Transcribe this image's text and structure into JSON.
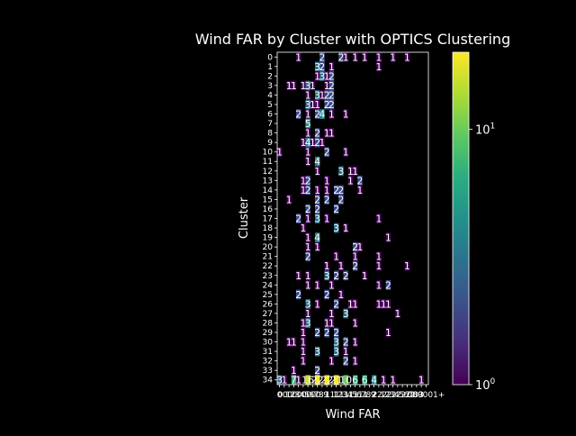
{
  "chart_data": {
    "type": "heatmap",
    "title": "Wind FAR by Cluster with OPTICS Clustering",
    "xlabel": "Wind FAR",
    "ylabel": "Cluster",
    "rows": [
      "0",
      "1",
      "2",
      "3",
      "4",
      "5",
      "6",
      "7",
      "8",
      "9",
      "10",
      "11",
      "12",
      "13",
      "14",
      "15",
      "16",
      "17",
      "18",
      "19",
      "20",
      "21",
      "22",
      "23",
      "24",
      "25",
      "26",
      "27",
      "28",
      "29",
      "30",
      "31",
      "32",
      "33",
      "34"
    ],
    "num_cols": 32,
    "x_tick_labels": [
      "0",
      "0.1",
      "0.2",
      "0.3",
      "0.4",
      "0.5",
      "0.6",
      "0.7",
      "0.8",
      "0.9",
      "1",
      "1.1",
      "1.2",
      "1.3",
      "1.4",
      "1.5",
      "1.6",
      "1.7",
      "1.8",
      "1.9",
      "2",
      "2.1",
      "2.2",
      "2.3",
      "2.4",
      "2.5",
      "2.6",
      "2.7",
      "2.8",
      "2.9",
      "3",
      "000001+"
    ],
    "colorbar": {
      "scale": "log",
      "min": 1,
      "max": 20,
      "ticks": [
        1,
        10
      ],
      "tick_labels": [
        "10^0",
        "10^1"
      ],
      "colormap": "viridis"
    },
    "cells": [
      [
        0,
        4,
        1
      ],
      [
        0,
        9,
        2
      ],
      [
        0,
        13,
        2
      ],
      [
        0,
        14,
        1
      ],
      [
        0,
        16,
        1
      ],
      [
        0,
        18,
        1
      ],
      [
        0,
        21,
        1
      ],
      [
        0,
        24,
        1
      ],
      [
        0,
        27,
        1
      ],
      [
        1,
        8,
        3
      ],
      [
        1,
        9,
        2
      ],
      [
        1,
        11,
        1
      ],
      [
        1,
        21,
        1
      ],
      [
        2,
        8,
        1
      ],
      [
        2,
        9,
        3
      ],
      [
        2,
        10,
        1
      ],
      [
        2,
        11,
        2
      ],
      [
        3,
        2,
        1
      ],
      [
        3,
        3,
        1
      ],
      [
        3,
        5,
        1
      ],
      [
        3,
        6,
        3
      ],
      [
        3,
        7,
        1
      ],
      [
        3,
        10,
        1
      ],
      [
        3,
        11,
        2
      ],
      [
        4,
        6,
        1
      ],
      [
        4,
        8,
        3
      ],
      [
        4,
        9,
        1
      ],
      [
        4,
        10,
        2
      ],
      [
        4,
        11,
        2
      ],
      [
        5,
        6,
        3
      ],
      [
        5,
        7,
        1
      ],
      [
        5,
        8,
        1
      ],
      [
        5,
        10,
        2
      ],
      [
        5,
        11,
        2
      ],
      [
        6,
        4,
        2
      ],
      [
        6,
        6,
        1
      ],
      [
        6,
        8,
        2
      ],
      [
        6,
        9,
        4
      ],
      [
        6,
        11,
        1
      ],
      [
        6,
        14,
        1
      ],
      [
        7,
        6,
        5
      ],
      [
        8,
        6,
        1
      ],
      [
        8,
        8,
        2
      ],
      [
        8,
        10,
        1
      ],
      [
        8,
        11,
        1
      ],
      [
        9,
        5,
        1
      ],
      [
        9,
        6,
        4
      ],
      [
        9,
        7,
        1
      ],
      [
        9,
        8,
        2
      ],
      [
        9,
        9,
        1
      ],
      [
        10,
        0,
        1
      ],
      [
        10,
        6,
        1
      ],
      [
        10,
        10,
        2
      ],
      [
        10,
        14,
        1
      ],
      [
        11,
        6,
        1
      ],
      [
        11,
        8,
        4
      ],
      [
        12,
        8,
        1
      ],
      [
        12,
        13,
        3
      ],
      [
        12,
        15,
        1
      ],
      [
        12,
        16,
        1
      ],
      [
        13,
        5,
        1
      ],
      [
        13,
        6,
        2
      ],
      [
        13,
        10,
        1
      ],
      [
        13,
        15,
        1
      ],
      [
        13,
        17,
        2
      ],
      [
        14,
        5,
        1
      ],
      [
        14,
        6,
        2
      ],
      [
        14,
        8,
        1
      ],
      [
        14,
        10,
        1
      ],
      [
        14,
        12,
        2
      ],
      [
        14,
        13,
        2
      ],
      [
        14,
        17,
        1
      ],
      [
        15,
        2,
        1
      ],
      [
        15,
        8,
        2
      ],
      [
        15,
        10,
        2
      ],
      [
        15,
        13,
        2
      ],
      [
        16,
        6,
        2
      ],
      [
        16,
        8,
        2
      ],
      [
        16,
        12,
        2
      ],
      [
        17,
        4,
        2
      ],
      [
        17,
        6,
        1
      ],
      [
        17,
        8,
        3
      ],
      [
        17,
        10,
        1
      ],
      [
        17,
        21,
        1
      ],
      [
        18,
        5,
        1
      ],
      [
        18,
        12,
        3
      ],
      [
        18,
        14,
        1
      ],
      [
        19,
        6,
        1
      ],
      [
        19,
        8,
        4
      ],
      [
        19,
        23,
        1
      ],
      [
        20,
        6,
        1
      ],
      [
        20,
        8,
        1
      ],
      [
        20,
        16,
        2
      ],
      [
        20,
        17,
        1
      ],
      [
        21,
        6,
        2
      ],
      [
        21,
        12,
        1
      ],
      [
        21,
        16,
        1
      ],
      [
        21,
        21,
        1
      ],
      [
        22,
        10,
        1
      ],
      [
        22,
        13,
        1
      ],
      [
        22,
        16,
        2
      ],
      [
        22,
        21,
        1
      ],
      [
        22,
        27,
        1
      ],
      [
        23,
        4,
        1
      ],
      [
        23,
        6,
        1
      ],
      [
        23,
        10,
        3
      ],
      [
        23,
        12,
        2
      ],
      [
        23,
        14,
        2
      ],
      [
        23,
        18,
        1
      ],
      [
        24,
        6,
        1
      ],
      [
        24,
        8,
        1
      ],
      [
        24,
        11,
        1
      ],
      [
        24,
        21,
        1
      ],
      [
        24,
        23,
        2
      ],
      [
        25,
        4,
        2
      ],
      [
        25,
        10,
        2
      ],
      [
        25,
        13,
        1
      ],
      [
        26,
        6,
        3
      ],
      [
        26,
        8,
        1
      ],
      [
        26,
        12,
        2
      ],
      [
        26,
        15,
        1
      ],
      [
        26,
        16,
        1
      ],
      [
        26,
        21,
        1
      ],
      [
        26,
        22,
        1
      ],
      [
        26,
        23,
        1
      ],
      [
        27,
        6,
        1
      ],
      [
        27,
        11,
        1
      ],
      [
        27,
        14,
        3
      ],
      [
        27,
        25,
        1
      ],
      [
        28,
        5,
        1
      ],
      [
        28,
        6,
        3
      ],
      [
        28,
        10,
        1
      ],
      [
        28,
        11,
        1
      ],
      [
        28,
        16,
        1
      ],
      [
        29,
        5,
        1
      ],
      [
        29,
        8,
        2
      ],
      [
        29,
        10,
        2
      ],
      [
        29,
        12,
        2
      ],
      [
        29,
        23,
        1
      ],
      [
        30,
        2,
        1
      ],
      [
        30,
        3,
        1
      ],
      [
        30,
        5,
        1
      ],
      [
        30,
        12,
        3
      ],
      [
        30,
        14,
        2
      ],
      [
        30,
        16,
        1
      ],
      [
        31,
        5,
        1
      ],
      [
        31,
        8,
        3
      ],
      [
        31,
        12,
        3
      ],
      [
        31,
        14,
        1
      ],
      [
        32,
        5,
        1
      ],
      [
        32,
        11,
        1
      ],
      [
        32,
        14,
        2
      ],
      [
        32,
        16,
        1
      ],
      [
        33,
        3,
        1
      ],
      [
        33,
        8,
        2
      ],
      [
        34,
        0,
        3
      ],
      [
        34,
        1,
        1
      ],
      [
        34,
        3,
        7
      ],
      [
        34,
        4,
        1
      ],
      [
        34,
        6,
        16
      ],
      [
        34,
        8,
        22
      ],
      [
        34,
        10,
        22
      ],
      [
        34,
        12,
        21
      ],
      [
        34,
        14,
        10
      ],
      [
        34,
        16,
        6
      ],
      [
        34,
        18,
        6
      ],
      [
        34,
        20,
        4
      ],
      [
        34,
        22,
        1
      ],
      [
        34,
        24,
        1
      ],
      [
        34,
        30,
        1
      ]
    ]
  }
}
